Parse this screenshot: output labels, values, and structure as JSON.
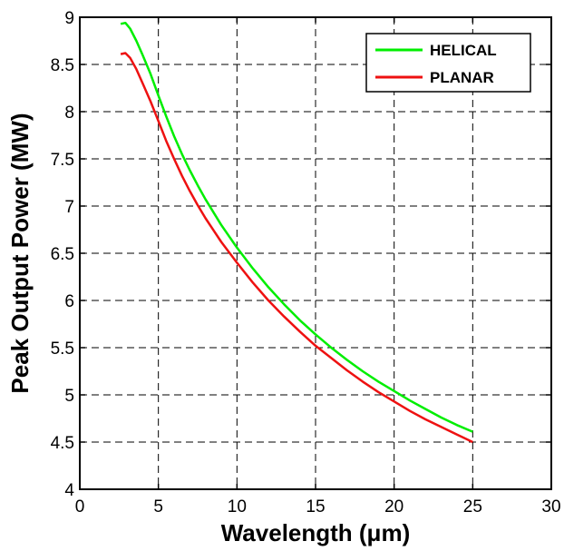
{
  "chart_data": {
    "type": "line",
    "title": "",
    "xlabel": "Wavelength (μm)",
    "ylabel": "Peak Output Power (MW)",
    "xlim": [
      0,
      30
    ],
    "ylim": [
      4,
      9
    ],
    "xticks": [
      0,
      5,
      10,
      15,
      20,
      25,
      30
    ],
    "yticks": [
      4,
      4.5,
      5,
      5.5,
      6,
      6.5,
      7,
      7.5,
      8,
      8.5,
      9
    ],
    "xtick_labels": [
      "0",
      "5",
      "10",
      "15",
      "20",
      "25",
      "30"
    ],
    "ytick_labels": [
      "4",
      "4.5",
      "5",
      "5.5",
      "6",
      "6.5",
      "7",
      "7.5",
      "8",
      "8.5",
      "9"
    ],
    "grid": true,
    "grid_style": "dashed",
    "legend_position": "top-right",
    "series": [
      {
        "name": "HELICAL",
        "color": "#00ee00",
        "x": [
          2.6,
          2.9,
          3.2,
          3.6,
          4.0,
          4.5,
          5.0,
          5.5,
          6.0,
          6.5,
          7.0,
          7.5,
          8.0,
          9.0,
          10.0,
          11.0,
          12.0,
          13.0,
          14.0,
          15.0,
          16.0,
          17.0,
          18.0,
          19.0,
          20.0,
          21.0,
          22.0,
          23.0,
          24.0,
          25.0
        ],
        "y": [
          8.93,
          8.94,
          8.88,
          8.75,
          8.6,
          8.4,
          8.17,
          7.95,
          7.74,
          7.55,
          7.38,
          7.22,
          7.07,
          6.8,
          6.56,
          6.34,
          6.14,
          5.96,
          5.79,
          5.64,
          5.5,
          5.37,
          5.25,
          5.14,
          5.04,
          4.94,
          4.85,
          4.76,
          4.68,
          4.61
        ]
      },
      {
        "name": "PLANAR",
        "color": "#ee1111",
        "x": [
          2.6,
          2.9,
          3.2,
          3.6,
          4.0,
          4.5,
          5.0,
          5.5,
          6.0,
          6.5,
          7.0,
          7.5,
          8.0,
          9.0,
          10.0,
          11.0,
          12.0,
          13.0,
          14.0,
          15.0,
          16.0,
          17.0,
          18.0,
          19.0,
          20.0,
          21.0,
          22.0,
          23.0,
          24.0,
          25.0
        ],
        "y": [
          8.61,
          8.62,
          8.57,
          8.45,
          8.3,
          8.11,
          7.9,
          7.69,
          7.5,
          7.32,
          7.16,
          7.01,
          6.87,
          6.62,
          6.4,
          6.19,
          6.0,
          5.83,
          5.67,
          5.52,
          5.39,
          5.26,
          5.14,
          5.03,
          4.93,
          4.83,
          4.74,
          4.66,
          4.58,
          4.5
        ]
      }
    ]
  }
}
